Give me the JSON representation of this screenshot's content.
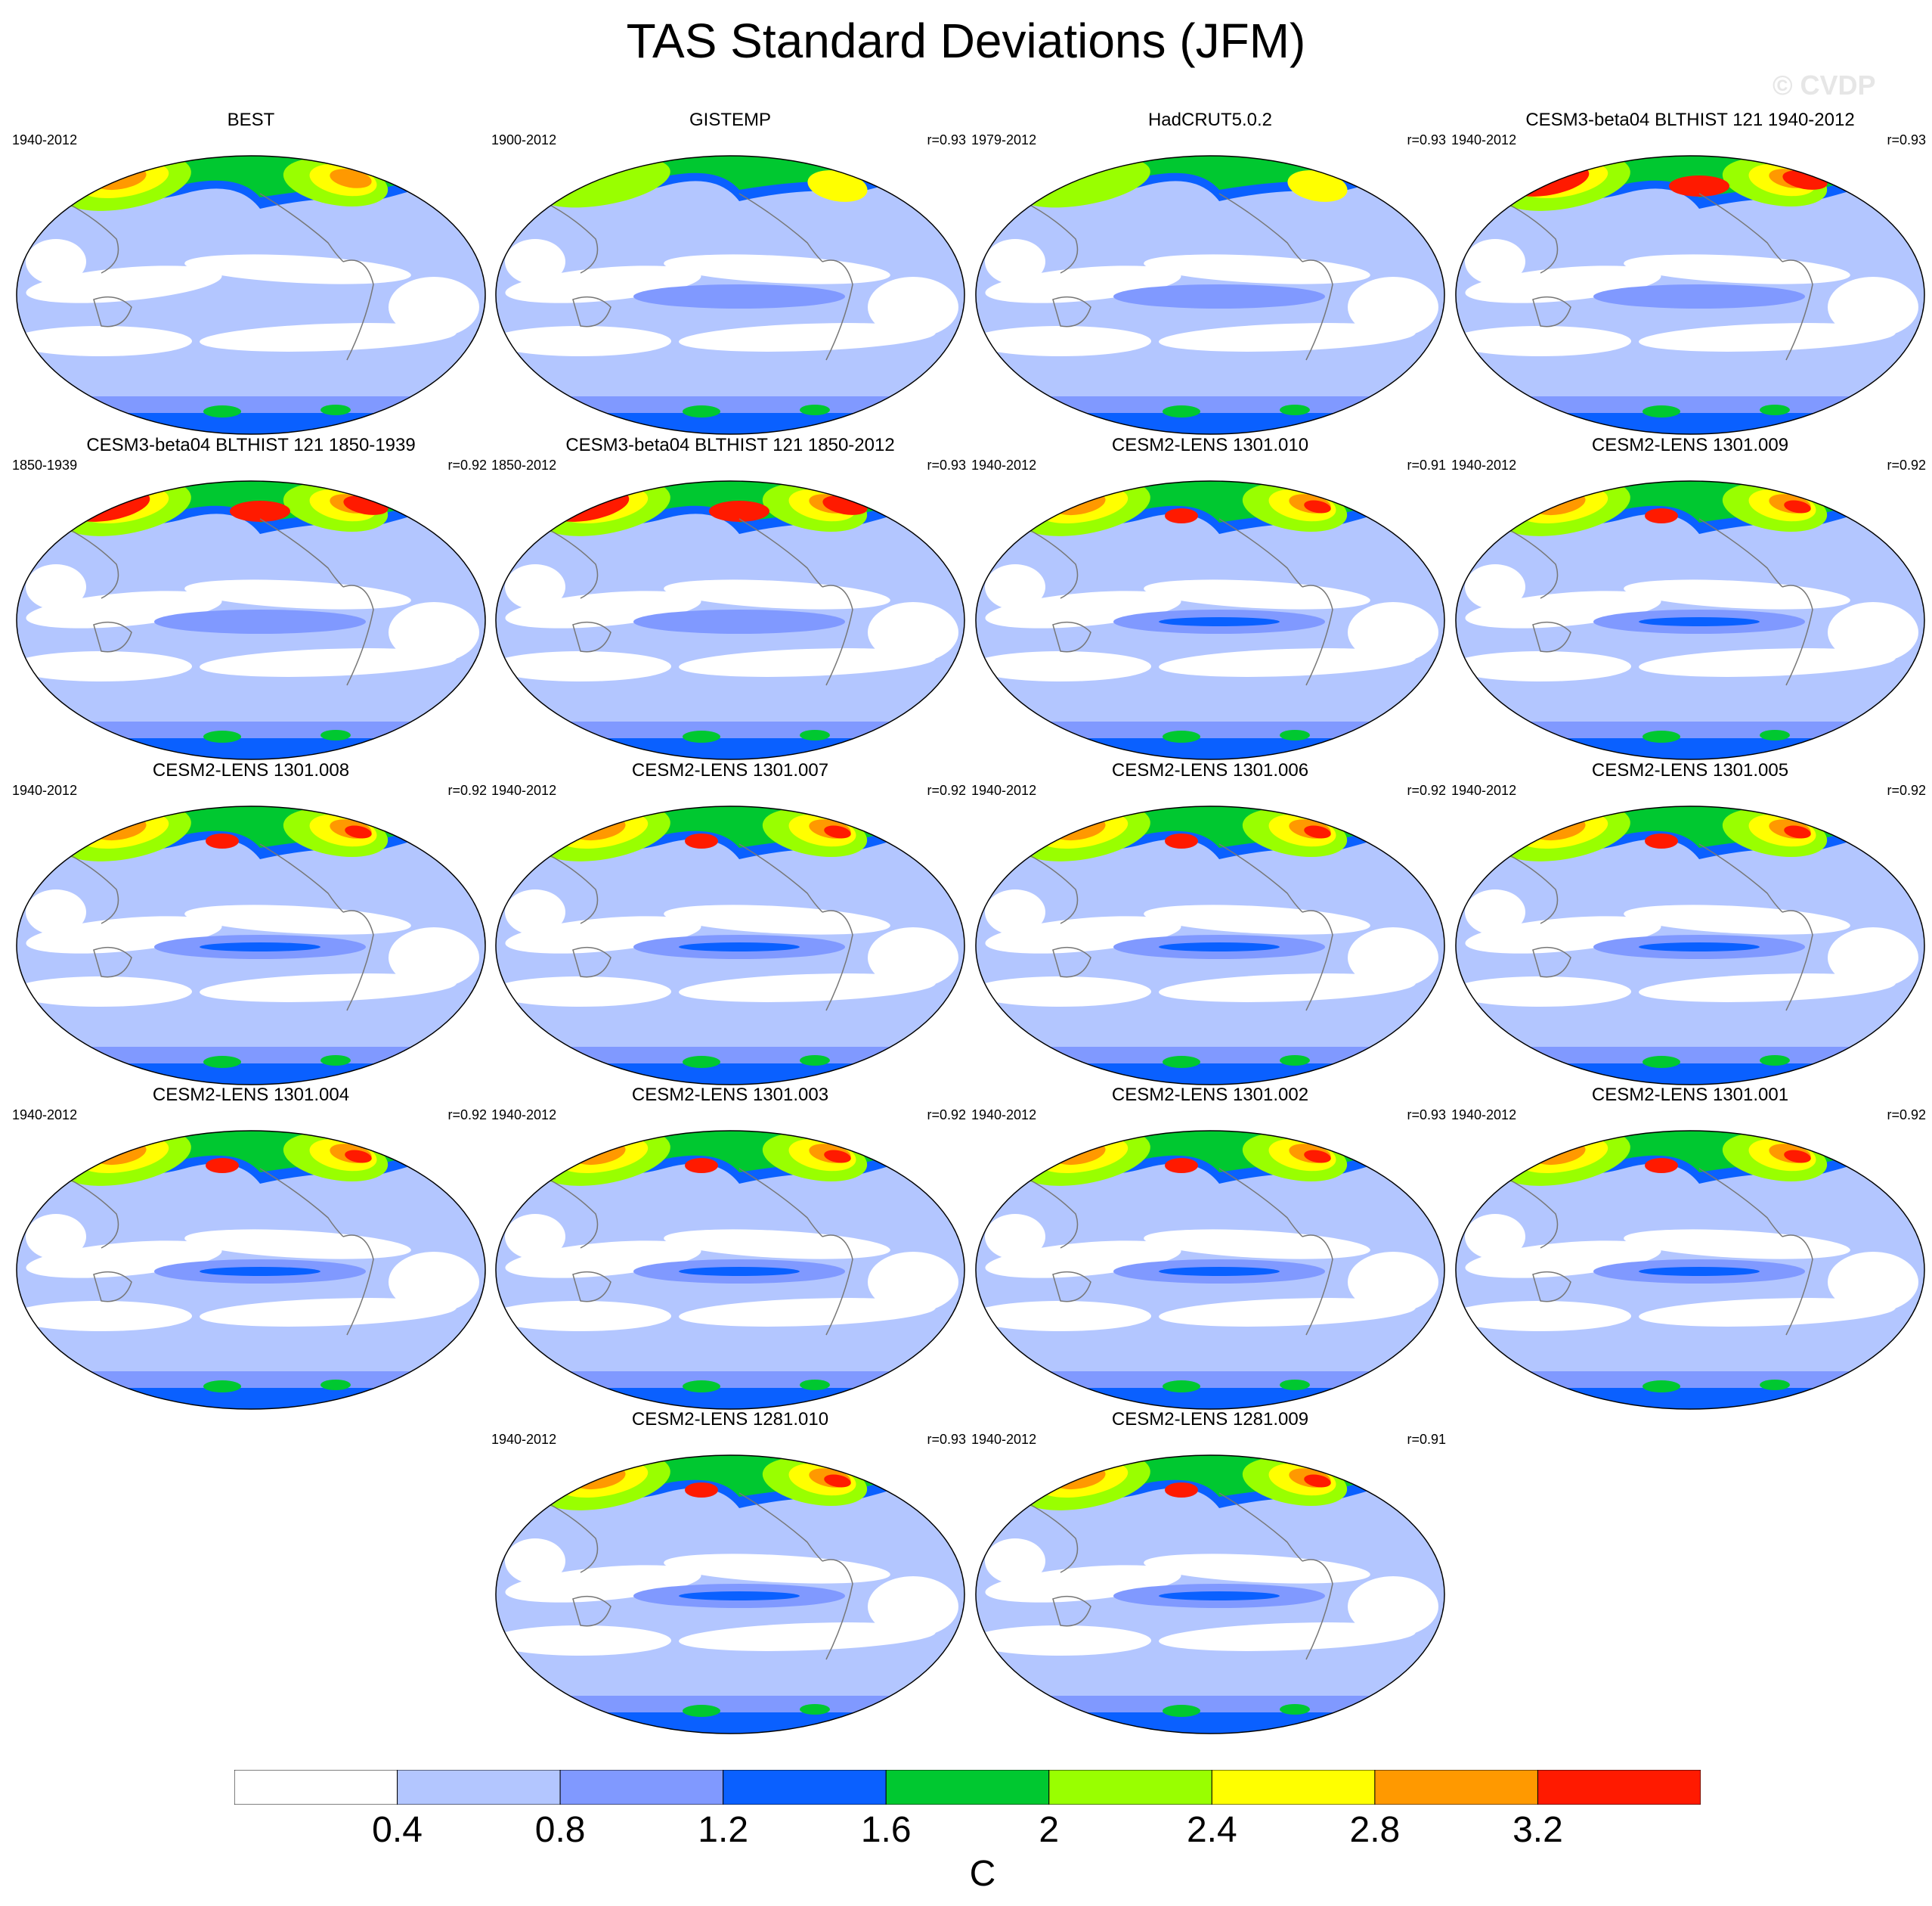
{
  "title": "TAS Standard Deviations (JFM)",
  "watermark": "© CVDP",
  "legend": {
    "units": "C",
    "labels": [
      "0.4",
      "0.8",
      "1.2",
      "1.6",
      "2",
      "2.4",
      "2.8",
      "3.2"
    ],
    "colors": [
      "#ffffff",
      "#b3c6ff",
      "#8099ff",
      "#0a60ff",
      "#00c830",
      "#99ff00",
      "#ffff00",
      "#ff9900",
      "#ff1a00"
    ]
  },
  "panels": [
    {
      "title": "BEST",
      "period": "1940-2012",
      "corr": "",
      "row": 0,
      "col": 0,
      "variant": 0
    },
    {
      "title": "GISTEMP",
      "period": "1900-2012",
      "corr": "r=0.93",
      "row": 0,
      "col": 1,
      "variant": 1
    },
    {
      "title": "HadCRUT5.0.2",
      "period": "1979-2012",
      "corr": "r=0.93",
      "row": 0,
      "col": 2,
      "variant": 1
    },
    {
      "title": "CESM3-beta04 BLTHIST 121 1940-2012",
      "period": "1940-2012",
      "corr": "r=0.93",
      "row": 0,
      "col": 3,
      "variant": 2
    },
    {
      "title": "CESM3-beta04 BLTHIST 121 1850-1939",
      "period": "1850-1939",
      "corr": "r=0.92",
      "row": 1,
      "col": 0,
      "variant": 2
    },
    {
      "title": "CESM3-beta04 BLTHIST 121 1850-2012",
      "period": "1850-2012",
      "corr": "r=0.93",
      "row": 1,
      "col": 1,
      "variant": 2
    },
    {
      "title": "CESM2-LENS 1301.010",
      "period": "1940-2012",
      "corr": "r=0.91",
      "row": 1,
      "col": 2,
      "variant": 3
    },
    {
      "title": "CESM2-LENS 1301.009",
      "period": "1940-2012",
      "corr": "r=0.92",
      "row": 1,
      "col": 3,
      "variant": 3
    },
    {
      "title": "CESM2-LENS 1301.008",
      "period": "1940-2012",
      "corr": "r=0.92",
      "row": 2,
      "col": 0,
      "variant": 3
    },
    {
      "title": "CESM2-LENS 1301.007",
      "period": "1940-2012",
      "corr": "r=0.92",
      "row": 2,
      "col": 1,
      "variant": 3
    },
    {
      "title": "CESM2-LENS 1301.006",
      "period": "1940-2012",
      "corr": "r=0.92",
      "row": 2,
      "col": 2,
      "variant": 3
    },
    {
      "title": "CESM2-LENS 1301.005",
      "period": "1940-2012",
      "corr": "r=0.92",
      "row": 2,
      "col": 3,
      "variant": 3
    },
    {
      "title": "CESM2-LENS 1301.004",
      "period": "1940-2012",
      "corr": "r=0.92",
      "row": 3,
      "col": 0,
      "variant": 3
    },
    {
      "title": "CESM2-LENS 1301.003",
      "period": "1940-2012",
      "corr": "r=0.92",
      "row": 3,
      "col": 1,
      "variant": 3
    },
    {
      "title": "CESM2-LENS 1301.002",
      "period": "1940-2012",
      "corr": "r=0.93",
      "row": 3,
      "col": 2,
      "variant": 3
    },
    {
      "title": "CESM2-LENS 1301.001",
      "period": "1940-2012",
      "corr": "r=0.92",
      "row": 3,
      "col": 3,
      "variant": 3
    },
    {
      "title": "CESM2-LENS 1281.010",
      "period": "1940-2012",
      "corr": "r=0.93",
      "row": 4,
      "col": 1,
      "variant": 3
    },
    {
      "title": "CESM2-LENS 1281.009",
      "period": "1940-2012",
      "corr": "r=0.91",
      "row": 4,
      "col": 2,
      "variant": 3
    }
  ]
}
